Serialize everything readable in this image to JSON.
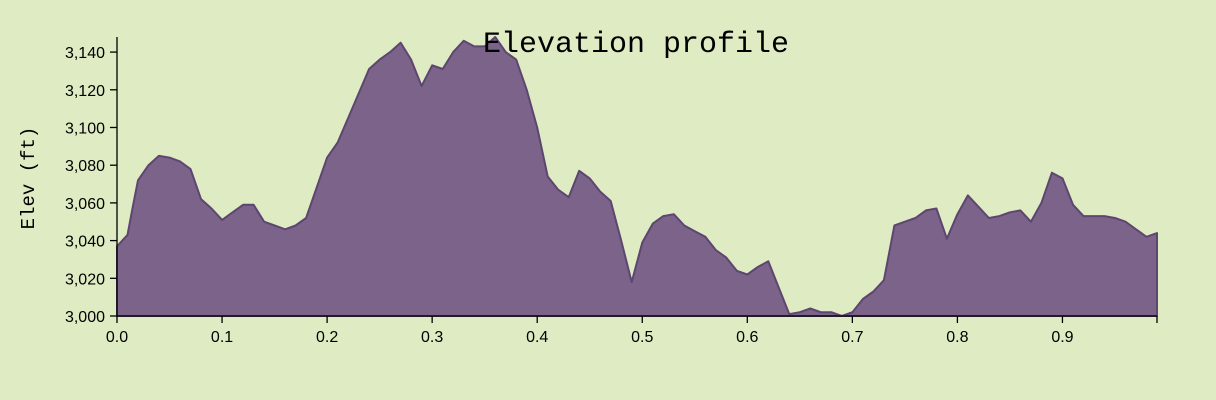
{
  "chart_data": {
    "type": "area",
    "title": "Elevation profile",
    "xlabel": "",
    "ylabel": "Elev (ft)",
    "xlim": [
      0,
      0.99
    ],
    "ylim": [
      3000,
      3148
    ],
    "x_ticks": [
      "0.0",
      "0.1",
      "0.2",
      "0.3",
      "0.4",
      "0.5",
      "0.6",
      "0.7",
      "0.8",
      "0.9"
    ],
    "y_ticks": [
      "3,000",
      "3,020",
      "3,040",
      "3,060",
      "3,080",
      "3,100",
      "3,120",
      "3,140"
    ],
    "grid": false,
    "colors": {
      "fill": "#7b6389",
      "stroke": "#5d4670",
      "background": "#dfecc3"
    },
    "series": [
      {
        "x": [
          0.0,
          0.01,
          0.015,
          0.02,
          0.03,
          0.04,
          0.05,
          0.06,
          0.07,
          0.08,
          0.09,
          0.1,
          0.11,
          0.12,
          0.13,
          0.14,
          0.15,
          0.16,
          0.17,
          0.18,
          0.19,
          0.2,
          0.21,
          0.22,
          0.23,
          0.24,
          0.25,
          0.26,
          0.27,
          0.28,
          0.29,
          0.3,
          0.31,
          0.32,
          0.33,
          0.34,
          0.35,
          0.36,
          0.37,
          0.38,
          0.39,
          0.4,
          0.41,
          0.42,
          0.43,
          0.44,
          0.45,
          0.46,
          0.47,
          0.48,
          0.49,
          0.5,
          0.51,
          0.52,
          0.53,
          0.54,
          0.55,
          0.56,
          0.57,
          0.58,
          0.59,
          0.6,
          0.61,
          0.62,
          0.63,
          0.64,
          0.65,
          0.66,
          0.67,
          0.68,
          0.69,
          0.7,
          0.71,
          0.72,
          0.73,
          0.74,
          0.75,
          0.76,
          0.77,
          0.78,
          0.79,
          0.8,
          0.81,
          0.82,
          0.83,
          0.84,
          0.85,
          0.86,
          0.87,
          0.88,
          0.89,
          0.9,
          0.91,
          0.92,
          0.93,
          0.94,
          0.95,
          0.96,
          0.97,
          0.98,
          0.99
        ],
        "values": [
          3037,
          3043,
          3058,
          3072,
          3080,
          3085,
          3084,
          3082,
          3078,
          3062,
          3057,
          3051,
          3055,
          3059,
          3059,
          3050,
          3048,
          3046,
          3048,
          3052,
          3068,
          3084,
          3092,
          3105,
          3118,
          3131,
          3136,
          3140,
          3145,
          3136,
          3122,
          3133,
          3131,
          3140,
          3146,
          3143,
          3143,
          3148,
          3140,
          3136,
          3120,
          3100,
          3074,
          3067,
          3063,
          3077,
          3073,
          3066,
          3061,
          3040,
          3018,
          3039,
          3049,
          3053,
          3054,
          3048,
          3045,
          3042,
          3035,
          3031,
          3024,
          3022,
          3026,
          3029,
          3015,
          3001,
          3002,
          3004,
          3002,
          3002,
          3000,
          3002,
          3009,
          3013,
          3019,
          3048,
          3050,
          3052,
          3056,
          3057,
          3041,
          3054,
          3064,
          3058,
          3052,
          3053,
          3055,
          3056,
          3050,
          3060,
          3076,
          3073,
          3059,
          3053,
          3053,
          3053,
          3052,
          3050,
          3046,
          3042,
          3044
        ]
      }
    ]
  }
}
